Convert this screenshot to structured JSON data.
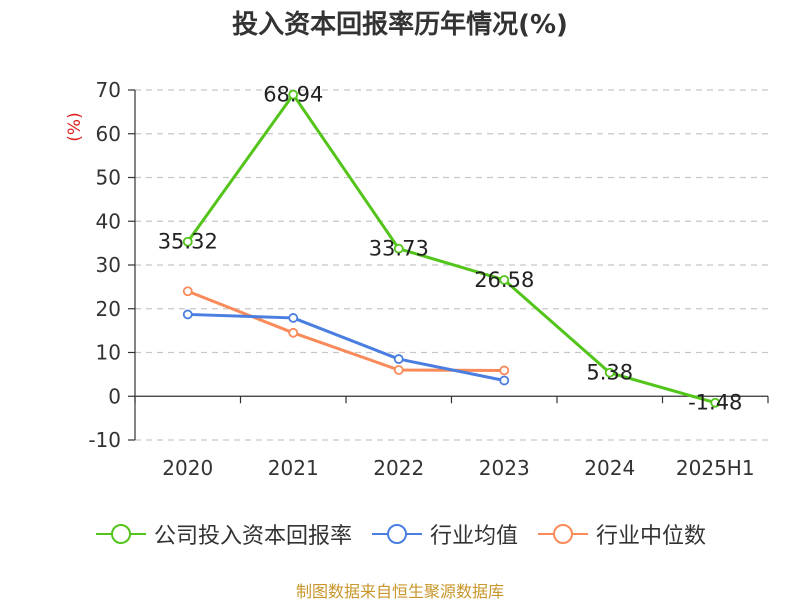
{
  "title": "投入资本回报率历年情况(%)",
  "source": "制图数据来自恒生聚源数据库",
  "colors": {
    "company": "#52c41a",
    "industry_avg": "#4a7fe0",
    "industry_median": "#f98a5a",
    "unit": "#e02020",
    "source": "#c8962a"
  },
  "chart_data": {
    "type": "line",
    "title": "投入资本回报率历年情况(%)",
    "ylabel": "(%)",
    "xlabel": "",
    "categories": [
      "2020",
      "2021",
      "2022",
      "2023",
      "2024",
      "2025H1"
    ],
    "ylim": [
      -10,
      70
    ],
    "yticks": [
      -10,
      0,
      10,
      20,
      30,
      40,
      50,
      60,
      70
    ],
    "grid": true,
    "legend": "bottom",
    "series": [
      {
        "name": "公司投入资本回报率",
        "color": "#52c41a",
        "values": [
          35.32,
          68.94,
          33.73,
          26.58,
          5.38,
          -1.48
        ],
        "labels": [
          "35.32",
          "68.94",
          "33.73",
          "26.58",
          "5.38",
          "-1.48"
        ]
      },
      {
        "name": "行业均值",
        "color": "#4a7fe0",
        "values": [
          18.7,
          17.9,
          8.5,
          3.6,
          null,
          null
        ]
      },
      {
        "name": "行业中位数",
        "color": "#f98a5a",
        "values": [
          24.0,
          14.5,
          6.0,
          5.9,
          null,
          null
        ]
      }
    ]
  }
}
